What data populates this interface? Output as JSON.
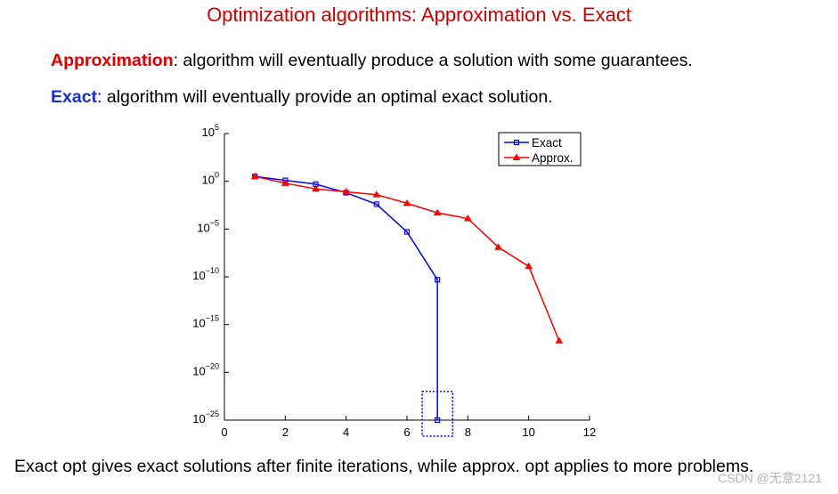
{
  "title": "Optimization algorithms: Approximation vs. Exact",
  "definitions": [
    {
      "term": "Approximation",
      "text": ": algorithm will eventually produce a solution with some guarantees."
    },
    {
      "term": "Exact",
      "text": ": algorithm will eventually provide an optimal exact solution."
    }
  ],
  "footer": "Exact opt gives exact solutions after finite iterations, while approx. opt applies to more problems.",
  "watermark": "CSDN @无意2121",
  "colors": {
    "title": "#d00000",
    "approximation": "#e00000",
    "exact": "#1432d2"
  },
  "chart_data": {
    "type": "line",
    "title": "",
    "xlabel": "",
    "ylabel": "",
    "xlim": [
      0,
      12
    ],
    "xticks": [
      0,
      2,
      4,
      6,
      8,
      10,
      12
    ],
    "yscale": "log",
    "ylim_exponent": [
      -25,
      5
    ],
    "yticks": [
      {
        "base": "10",
        "exp": "5",
        "value_exp": 5
      },
      {
        "base": "10",
        "exp": "0",
        "value_exp": 0
      },
      {
        "base": "10",
        "exp": "−5",
        "value_exp": -5
      },
      {
        "base": "10",
        "exp": "−10",
        "value_exp": -10
      },
      {
        "base": "10",
        "exp": "−15",
        "value_exp": -15
      },
      {
        "base": "10",
        "exp": "−20",
        "value_exp": -20
      },
      {
        "base": "10",
        "exp": "−25",
        "value_exp": -25
      }
    ],
    "grid": false,
    "legend_position": "top-right",
    "series": [
      {
        "name": "Exact",
        "color": "#0000ff",
        "marker": "square",
        "x": [
          1,
          2,
          3,
          4,
          5,
          6,
          7,
          7
        ],
        "y_exponent": [
          0.5,
          0.1,
          -0.3,
          -1.2,
          -2.4,
          -5.3,
          -10.3,
          -25
        ]
      },
      {
        "name": "Approx.",
        "color": "#ff0000",
        "marker": "triangle",
        "x": [
          1,
          2,
          3,
          4,
          5,
          6,
          7,
          8,
          9,
          10,
          11
        ],
        "y_exponent": [
          0.5,
          -0.2,
          -0.8,
          -1.1,
          -1.4,
          -2.3,
          -3.3,
          -3.9,
          -6.9,
          -8.9,
          -16.7
        ]
      }
    ],
    "annotation": {
      "type": "dotted-box",
      "color": "#0000ff",
      "x_range": [
        6.5,
        7.5
      ],
      "y_exponent_range": [
        -25,
        -22
      ]
    }
  }
}
